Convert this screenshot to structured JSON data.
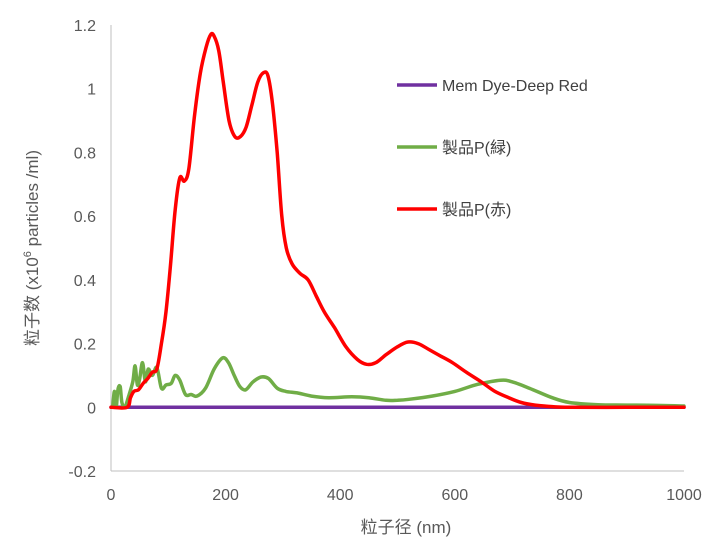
{
  "chart_data": {
    "type": "line",
    "xlabel": "粒子径 (nm)",
    "ylabel_prefix": "粒子数 (x10",
    "ylabel_exponent": "6",
    "ylabel_suffix": " particles /ml)",
    "xlim": [
      0,
      1000
    ],
    "ylim": [
      -0.2,
      1.2
    ],
    "xticks": [
      "0",
      "200",
      "400",
      "600",
      "800",
      "1000"
    ],
    "yticks": [
      "-0.2",
      "0",
      "0.2",
      "0.4",
      "0.6",
      "0.8",
      "1",
      "1.2"
    ],
    "grid": false,
    "legend_position": "top-right",
    "series": [
      {
        "name": "Mem Dye-Deep Red",
        "color": "#7030a0",
        "points": [
          [
            0,
            0
          ],
          [
            100,
            0
          ],
          [
            200,
            0
          ],
          [
            300,
            0
          ],
          [
            400,
            0
          ],
          [
            500,
            0
          ],
          [
            600,
            0
          ],
          [
            700,
            0
          ],
          [
            800,
            0
          ],
          [
            900,
            0
          ],
          [
            1000,
            0
          ]
        ]
      },
      {
        "name": "製品P(緑)",
        "color": "#70ad47",
        "points": [
          [
            3,
            0
          ],
          [
            6,
            0.05
          ],
          [
            9,
            0
          ],
          [
            12,
            0.055
          ],
          [
            16,
            0.065
          ],
          [
            19,
            0.015
          ],
          [
            24,
            0
          ],
          [
            30,
            0.03
          ],
          [
            38,
            0.08
          ],
          [
            42,
            0.13
          ],
          [
            46,
            0.07
          ],
          [
            50,
            0.09
          ],
          [
            55,
            0.14
          ],
          [
            60,
            0.08
          ],
          [
            65,
            0.12
          ],
          [
            72,
            0.1
          ],
          [
            80,
            0.125
          ],
          [
            88,
            0.06
          ],
          [
            96,
            0.07
          ],
          [
            105,
            0.075
          ],
          [
            112,
            0.1
          ],
          [
            120,
            0.085
          ],
          [
            130,
            0.04
          ],
          [
            140,
            0.04
          ],
          [
            150,
            0.035
          ],
          [
            165,
            0.06
          ],
          [
            180,
            0.12
          ],
          [
            195,
            0.155
          ],
          [
            205,
            0.14
          ],
          [
            215,
            0.1
          ],
          [
            225,
            0.065
          ],
          [
            235,
            0.055
          ],
          [
            248,
            0.08
          ],
          [
            262,
            0.095
          ],
          [
            275,
            0.09
          ],
          [
            290,
            0.06
          ],
          [
            305,
            0.05
          ],
          [
            325,
            0.045
          ],
          [
            350,
            0.035
          ],
          [
            380,
            0.03
          ],
          [
            420,
            0.033
          ],
          [
            450,
            0.03
          ],
          [
            480,
            0.022
          ],
          [
            500,
            0.022
          ],
          [
            520,
            0.025
          ],
          [
            560,
            0.035
          ],
          [
            600,
            0.05
          ],
          [
            640,
            0.072
          ],
          [
            680,
            0.085
          ],
          [
            700,
            0.08
          ],
          [
            730,
            0.06
          ],
          [
            770,
            0.03
          ],
          [
            800,
            0.015
          ],
          [
            850,
            0.008
          ],
          [
            900,
            0.007
          ],
          [
            950,
            0.006
          ],
          [
            1000,
            0.004
          ]
        ]
      },
      {
        "name": "製品P(赤)",
        "color": "#ff0000",
        "points": [
          [
            0,
            0
          ],
          [
            28,
            0
          ],
          [
            34,
            0.03
          ],
          [
            40,
            0.05
          ],
          [
            48,
            0.055
          ],
          [
            56,
            0.075
          ],
          [
            64,
            0.09
          ],
          [
            72,
            0.11
          ],
          [
            80,
            0.12
          ],
          [
            88,
            0.2
          ],
          [
            96,
            0.3
          ],
          [
            104,
            0.45
          ],
          [
            112,
            0.62
          ],
          [
            120,
            0.72
          ],
          [
            128,
            0.71
          ],
          [
            136,
            0.75
          ],
          [
            146,
            0.92
          ],
          [
            156,
            1.05
          ],
          [
            166,
            1.13
          ],
          [
            174,
            1.17
          ],
          [
            180,
            1.165
          ],
          [
            188,
            1.12
          ],
          [
            196,
            1.02
          ],
          [
            206,
            0.9
          ],
          [
            216,
            0.85
          ],
          [
            226,
            0.85
          ],
          [
            236,
            0.88
          ],
          [
            246,
            0.95
          ],
          [
            256,
            1.02
          ],
          [
            266,
            1.05
          ],
          [
            274,
            1.04
          ],
          [
            282,
            0.95
          ],
          [
            290,
            0.8
          ],
          [
            298,
            0.6
          ],
          [
            306,
            0.5
          ],
          [
            316,
            0.45
          ],
          [
            330,
            0.42
          ],
          [
            344,
            0.4
          ],
          [
            358,
            0.35
          ],
          [
            372,
            0.3
          ],
          [
            390,
            0.25
          ],
          [
            410,
            0.19
          ],
          [
            430,
            0.15
          ],
          [
            446,
            0.135
          ],
          [
            462,
            0.14
          ],
          [
            480,
            0.165
          ],
          [
            500,
            0.19
          ],
          [
            518,
            0.205
          ],
          [
            536,
            0.2
          ],
          [
            556,
            0.18
          ],
          [
            576,
            0.16
          ],
          [
            596,
            0.14
          ],
          [
            620,
            0.11
          ],
          [
            646,
            0.08
          ],
          [
            670,
            0.05
          ],
          [
            694,
            0.03
          ],
          [
            716,
            0.015
          ],
          [
            740,
            0.007
          ],
          [
            770,
            0.002
          ],
          [
            800,
            0
          ],
          [
            900,
            0
          ],
          [
            1000,
            0
          ]
        ]
      }
    ]
  }
}
